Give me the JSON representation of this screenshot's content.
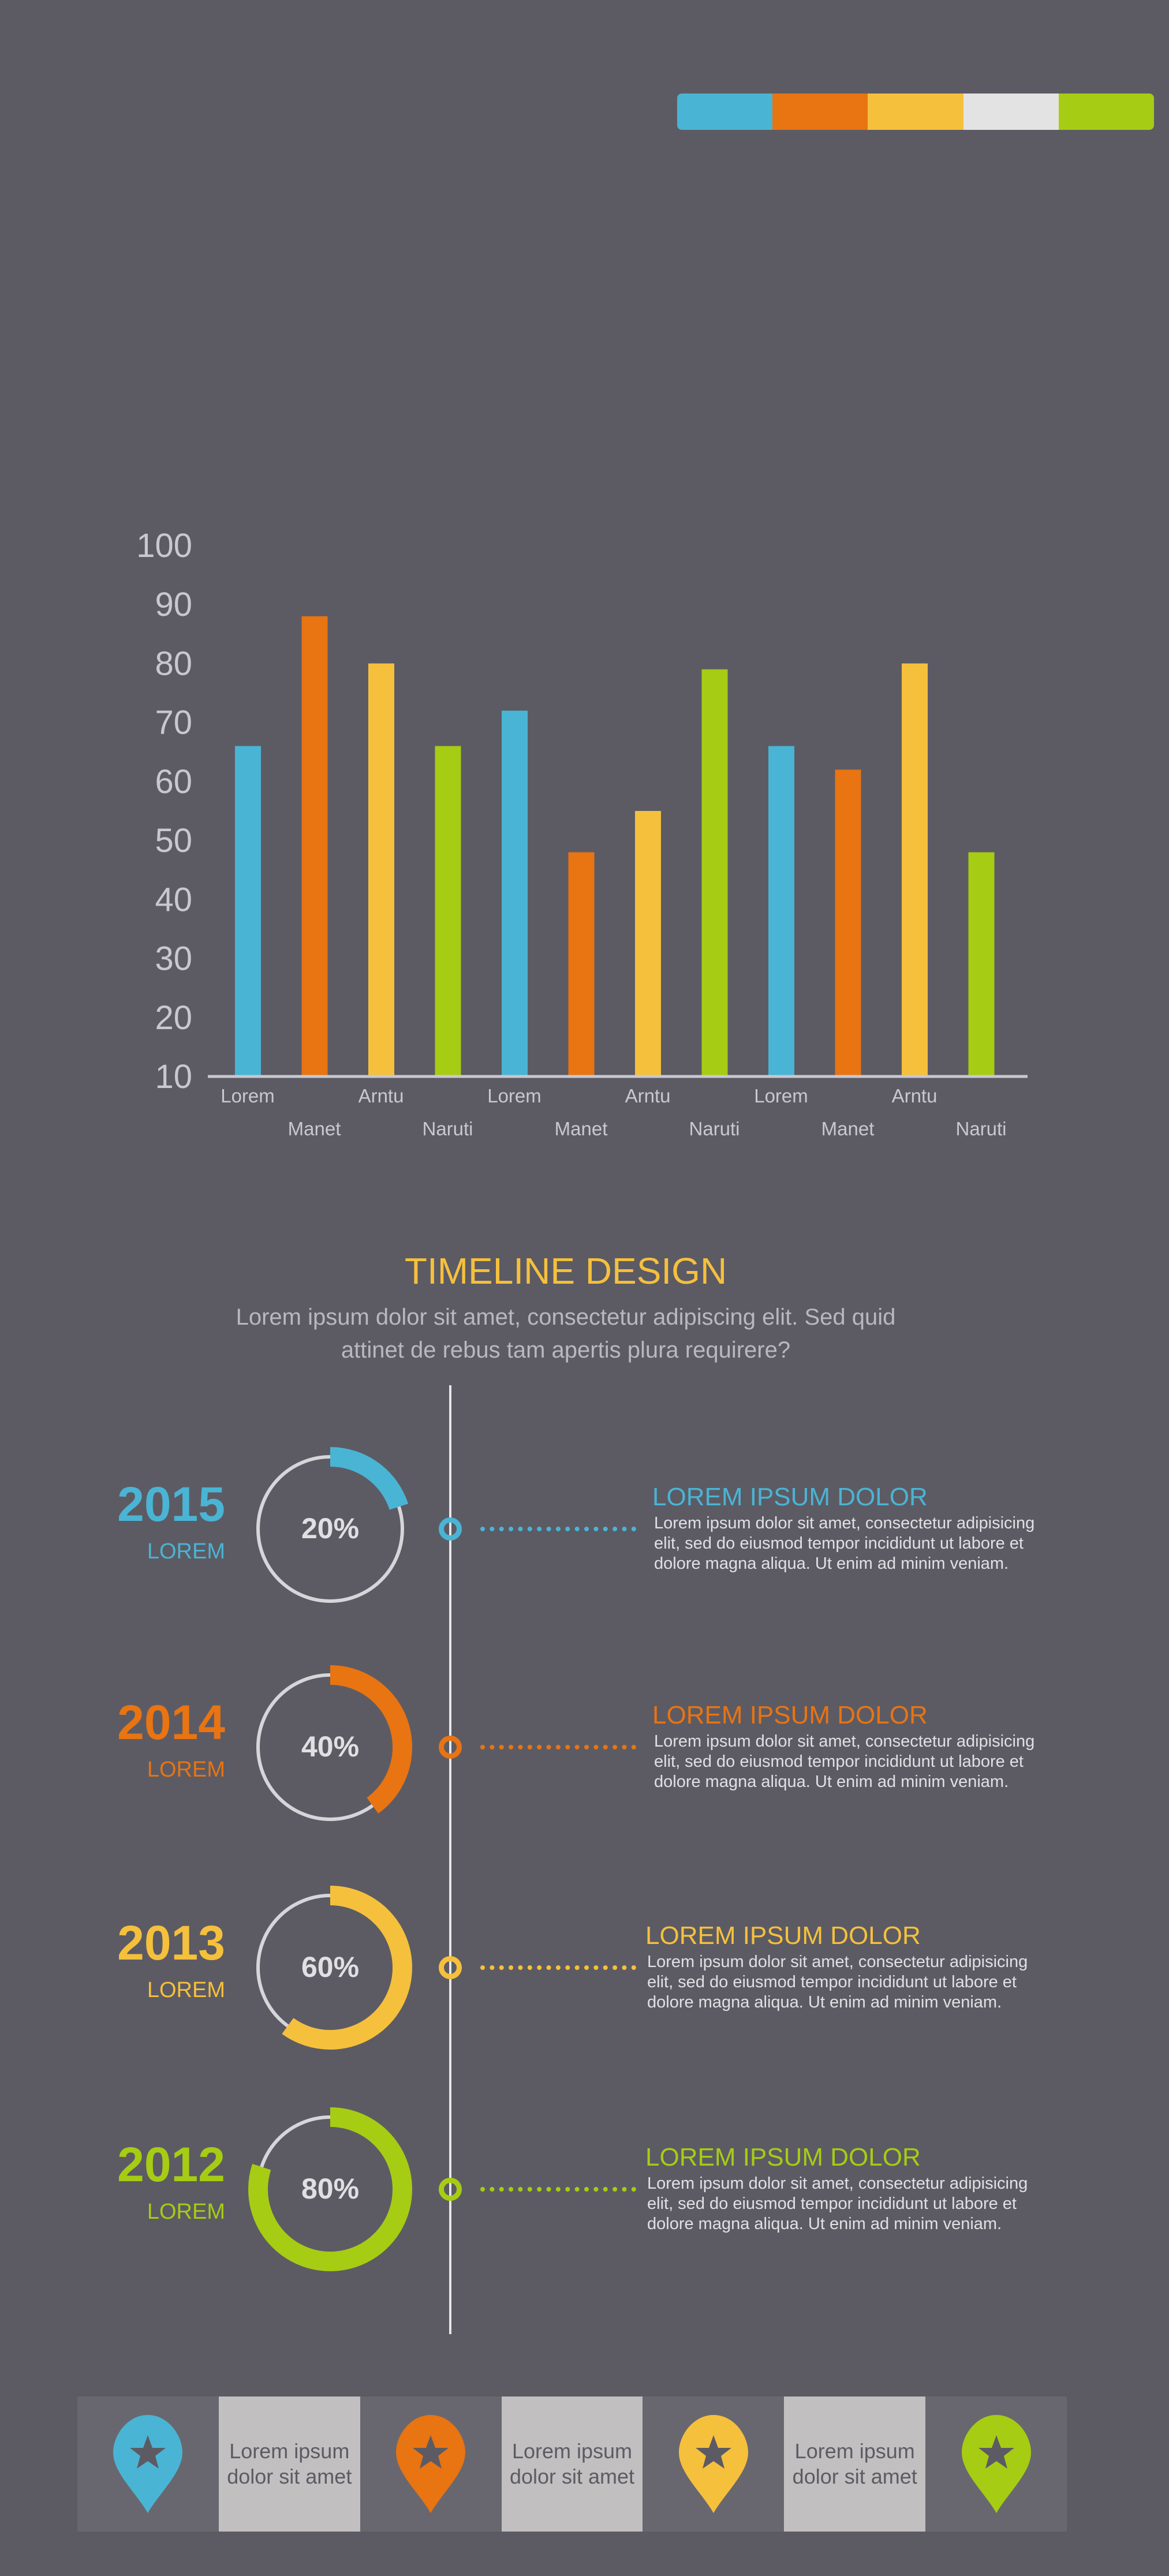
{
  "colors": {
    "blue": "#4ab4d4",
    "orange": "#e87412",
    "yellow": "#f5c03c",
    "white": "#e3e3e3",
    "green": "#a6cc14"
  },
  "legend": [
    "#4ab4d4",
    "#e87412",
    "#f5c03c",
    "#e3e3e3",
    "#a6cc14"
  ],
  "chart_data": {
    "type": "bar",
    "categories": [
      "Lorem",
      "Manet",
      "Arntu",
      "Naruti",
      "Lorem",
      "Manet",
      "Arntu",
      "Naruti",
      "Lorem",
      "Manet",
      "Arntu",
      "Naruti"
    ],
    "values": [
      66,
      88,
      80,
      66,
      72,
      48,
      55,
      79,
      66,
      62,
      80,
      48
    ],
    "bar_colors": [
      "#4ab4d4",
      "#e87412",
      "#f5c03c",
      "#a6cc14",
      "#4ab4d4",
      "#e87412",
      "#f5c03c",
      "#a6cc14",
      "#4ab4d4",
      "#e87412",
      "#f5c03c",
      "#a6cc14"
    ],
    "yticks": [
      10,
      20,
      30,
      40,
      50,
      60,
      70,
      80,
      90,
      100
    ],
    "ylim": [
      10,
      100
    ],
    "title": "",
    "xlabel": "",
    "ylabel": ""
  },
  "timeline": {
    "title": "TIMELINE DESIGN",
    "subtitle": [
      "Lorem ipsum dolor sit amet, consectetur adipiscing elit. Sed quid",
      "attinet de rebus tam apertis plura requirere?"
    ],
    "items": [
      {
        "year": "2015",
        "label": "LOREM",
        "percent": 20,
        "percent_text": "20%",
        "color": "#4ab4d4",
        "heading": "LOREM IPSUM DOLOR",
        "body": "Lorem ipsum dolor sit amet, consectetur adipisicing elit, sed do eiusmod tempor incididunt ut labore et dolore magna aliqua. Ut enim ad minim veniam."
      },
      {
        "year": "2014",
        "label": "LOREM",
        "percent": 40,
        "percent_text": "40%",
        "color": "#e87412",
        "heading": "LOREM IPSUM DOLOR",
        "body": "Lorem ipsum dolor sit amet, consectetur adipisicing elit, sed do eiusmod tempor incididunt ut labore et dolore magna aliqua. Ut enim ad minim veniam."
      },
      {
        "year": "2013",
        "label": "LOREM",
        "percent": 60,
        "percent_text": "60%",
        "color": "#f5c03c",
        "heading": "LOREM IPSUM DOLOR",
        "body": "Lorem ipsum dolor sit amet, consectetur adipisicing elit, sed do eiusmod tempor incididunt ut labore et dolore magna aliqua. Ut enim ad minim veniam."
      },
      {
        "year": "2012",
        "label": "LOREM",
        "percent": 80,
        "percent_text": "80%",
        "color": "#a6cc14",
        "heading": "LOREM IPSUM DOLOR",
        "body": "Lorem ipsum dolor sit amet, consectetur adipisicing elit, sed do eiusmod tempor incididunt ut labore et dolore magna aliqua. Ut enim ad minim veniam."
      }
    ]
  },
  "footer": {
    "pins": [
      {
        "icon": "map-pin-star-icon",
        "color": "#4ab4d4"
      },
      {
        "icon": "map-pin-star-icon",
        "color": "#e87412"
      },
      {
        "icon": "map-pin-star-icon",
        "color": "#f5c03c"
      },
      {
        "icon": "map-pin-star-icon",
        "color": "#a6cc14"
      }
    ],
    "texts": [
      [
        "Lorem ipsum",
        "dolor sit amet"
      ],
      [
        "Lorem ipsum",
        "dolor sit amet"
      ],
      [
        "Lorem ipsum",
        "dolor sit amet"
      ]
    ]
  }
}
